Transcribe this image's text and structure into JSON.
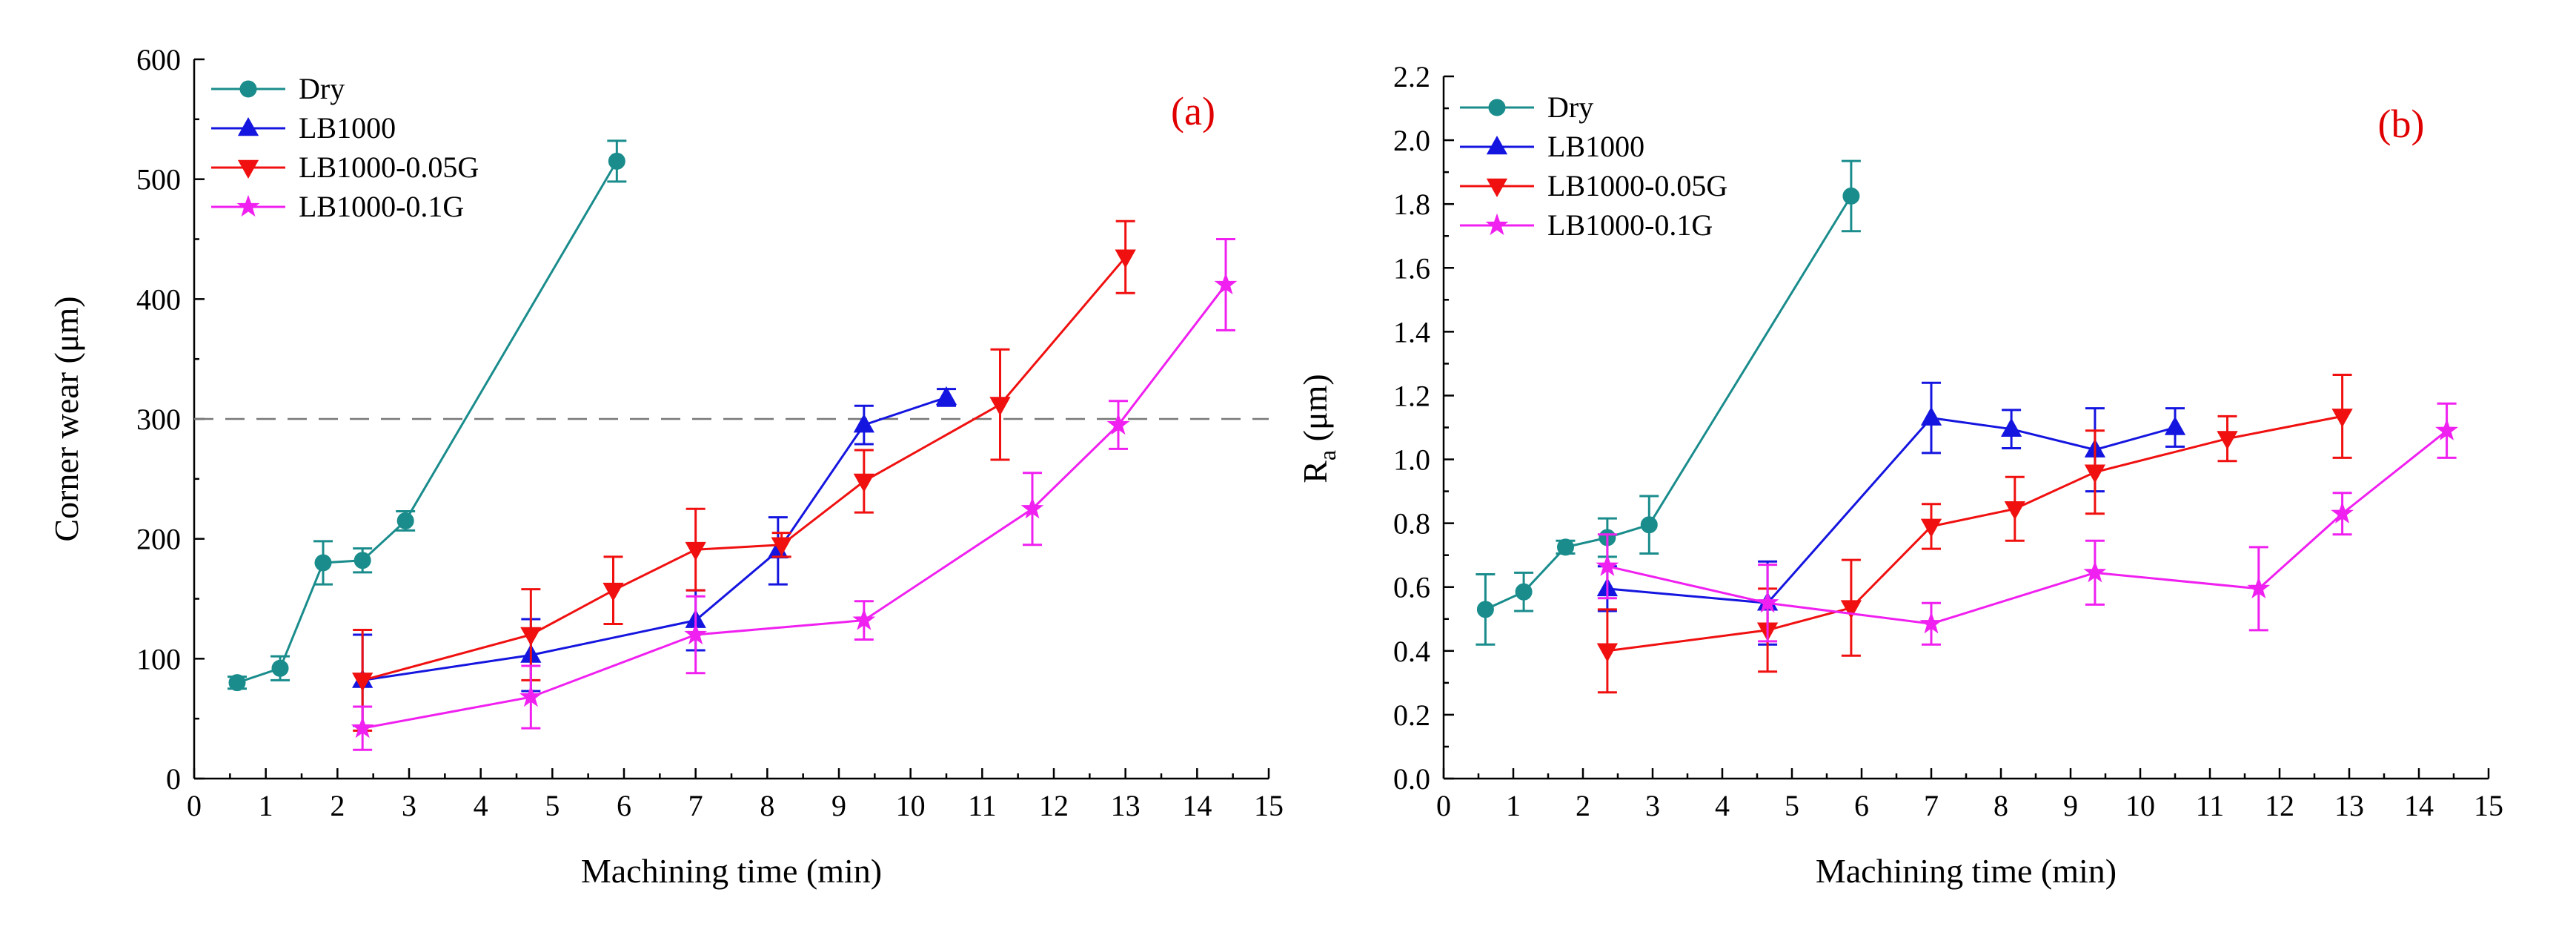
{
  "chart_data": [
    {
      "type": "line",
      "panel_label": "(a)",
      "xlabel": "Machining time (min)",
      "ylabel": "Corner wear (μm)",
      "xlim": [
        0,
        15
      ],
      "ylim": [
        0,
        600
      ],
      "xticks": [
        0,
        1,
        2,
        3,
        4,
        5,
        6,
        7,
        8,
        9,
        10,
        11,
        12,
        13,
        14,
        15
      ],
      "yticks": [
        0,
        100,
        200,
        300,
        400,
        500,
        600
      ],
      "ytick_labels": [
        "0",
        "100",
        "200",
        "300",
        "400",
        "500",
        "600"
      ],
      "reference_line": 300,
      "legend_position": "top-left",
      "series": [
        {
          "name": "Dry",
          "color": "#1a8c8c",
          "marker": "circle",
          "x": [
            0.6,
            1.2,
            1.8,
            2.35,
            2.95,
            5.9
          ],
          "y": [
            80,
            92,
            180,
            182,
            215,
            515
          ],
          "err": [
            5,
            10,
            18,
            10,
            8,
            17
          ]
        },
        {
          "name": "LB1000",
          "color": "#1515e0",
          "marker": "triangle-up",
          "x": [
            2.35,
            4.7,
            7.0,
            8.15,
            9.35,
            10.5
          ],
          "y": [
            82,
            103,
            132,
            190,
            295,
            318
          ],
          "err": [
            38,
            30,
            25,
            28,
            16,
            7
          ]
        },
        {
          "name": "LB1000-0.05G",
          "color": "#f01010",
          "marker": "triangle-down",
          "x": [
            2.35,
            4.7,
            5.85,
            7.0,
            8.2,
            9.35,
            11.25,
            13.0
          ],
          "y": [
            82,
            120,
            157,
            191,
            195,
            248,
            312,
            435
          ],
          "err": [
            42,
            38,
            28,
            34,
            10,
            26,
            46,
            30
          ]
        },
        {
          "name": "LB1000-0.1G",
          "color": "#f020f0",
          "marker": "star",
          "x": [
            2.35,
            4.7,
            7.0,
            9.35,
            11.7,
            12.9,
            14.4
          ],
          "y": [
            42,
            68,
            120,
            132,
            225,
            295,
            412
          ],
          "err": [
            18,
            26,
            32,
            16,
            30,
            20,
            38
          ]
        }
      ]
    },
    {
      "type": "line",
      "panel_label": "(b)",
      "xlabel": "Machining time (min)",
      "ylabel_main": "R",
      "ylabel_sub": "a",
      "ylabel_rest": " (μm)",
      "xlim": [
        0,
        15
      ],
      "ylim": [
        0,
        2.2
      ],
      "xticks": [
        0,
        1,
        2,
        3,
        4,
        5,
        6,
        7,
        8,
        9,
        10,
        11,
        12,
        13,
        14,
        15
      ],
      "yticks": [
        0,
        0.2,
        0.4,
        0.6,
        0.8,
        1.0,
        1.2,
        1.4,
        1.6,
        1.8,
        2.0,
        2.2
      ],
      "ytick_labels": [
        "0.0",
        "0.2",
        "0.4",
        "0.6",
        "0.8",
        "1.0",
        "1.2",
        "1.4",
        "1.6",
        "1.8",
        "2.0",
        "2.2"
      ],
      "legend_position": "top-left",
      "series": [
        {
          "name": "Dry",
          "color": "#1a8c8c",
          "marker": "circle",
          "x": [
            0.6,
            1.15,
            1.75,
            2.35,
            2.95,
            5.85
          ],
          "y": [
            0.53,
            0.585,
            0.725,
            0.755,
            0.795,
            1.825
          ],
          "err": [
            0.11,
            0.06,
            0.02,
            0.06,
            0.09,
            0.11
          ]
        },
        {
          "name": "LB1000",
          "color": "#1515e0",
          "marker": "triangle-up",
          "x": [
            2.35,
            4.65,
            7.0,
            8.15,
            9.35,
            10.5
          ],
          "y": [
            0.595,
            0.55,
            1.13,
            1.095,
            1.03,
            1.1
          ],
          "err": [
            0.07,
            0.13,
            0.11,
            0.06,
            0.13,
            0.06
          ]
        },
        {
          "name": "LB1000-0.05G",
          "color": "#f01010",
          "marker": "triangle-down",
          "x": [
            2.35,
            4.65,
            5.85,
            7.0,
            8.2,
            9.35,
            11.25,
            12.9
          ],
          "y": [
            0.4,
            0.465,
            0.535,
            0.79,
            0.845,
            0.96,
            1.065,
            1.135
          ],
          "err": [
            0.13,
            0.13,
            0.15,
            0.07,
            0.1,
            0.13,
            0.07,
            0.13
          ]
        },
        {
          "name": "LB1000-0.1G",
          "color": "#f020f0",
          "marker": "star",
          "x": [
            2.35,
            4.65,
            7.0,
            9.35,
            11.7,
            12.9,
            14.4
          ],
          "y": [
            0.665,
            0.55,
            0.485,
            0.645,
            0.595,
            0.83,
            1.09
          ],
          "err": [
            0.1,
            0.12,
            0.065,
            0.1,
            0.13,
            0.065,
            0.085
          ]
        }
      ]
    }
  ]
}
